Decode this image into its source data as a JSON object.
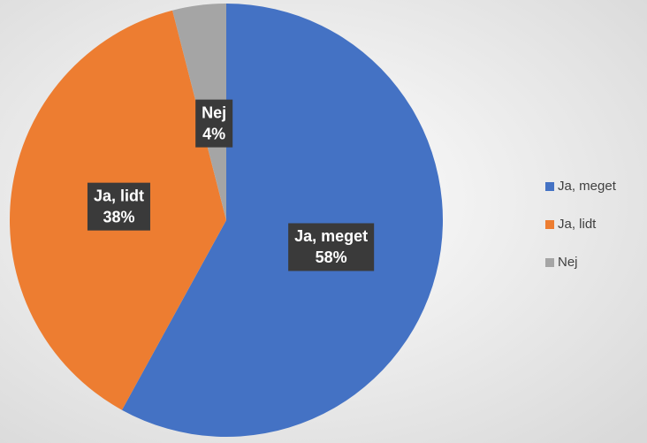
{
  "chart_data": {
    "type": "pie",
    "categories": [
      "Ja, meget",
      "Ja, lidt",
      "Nej"
    ],
    "values": [
      58,
      38,
      4
    ],
    "value_labels": [
      "58%",
      "38%",
      "4%"
    ],
    "colors": [
      "#4472c4",
      "#ed7d31",
      "#a5a5a5"
    ],
    "legend": "right"
  }
}
